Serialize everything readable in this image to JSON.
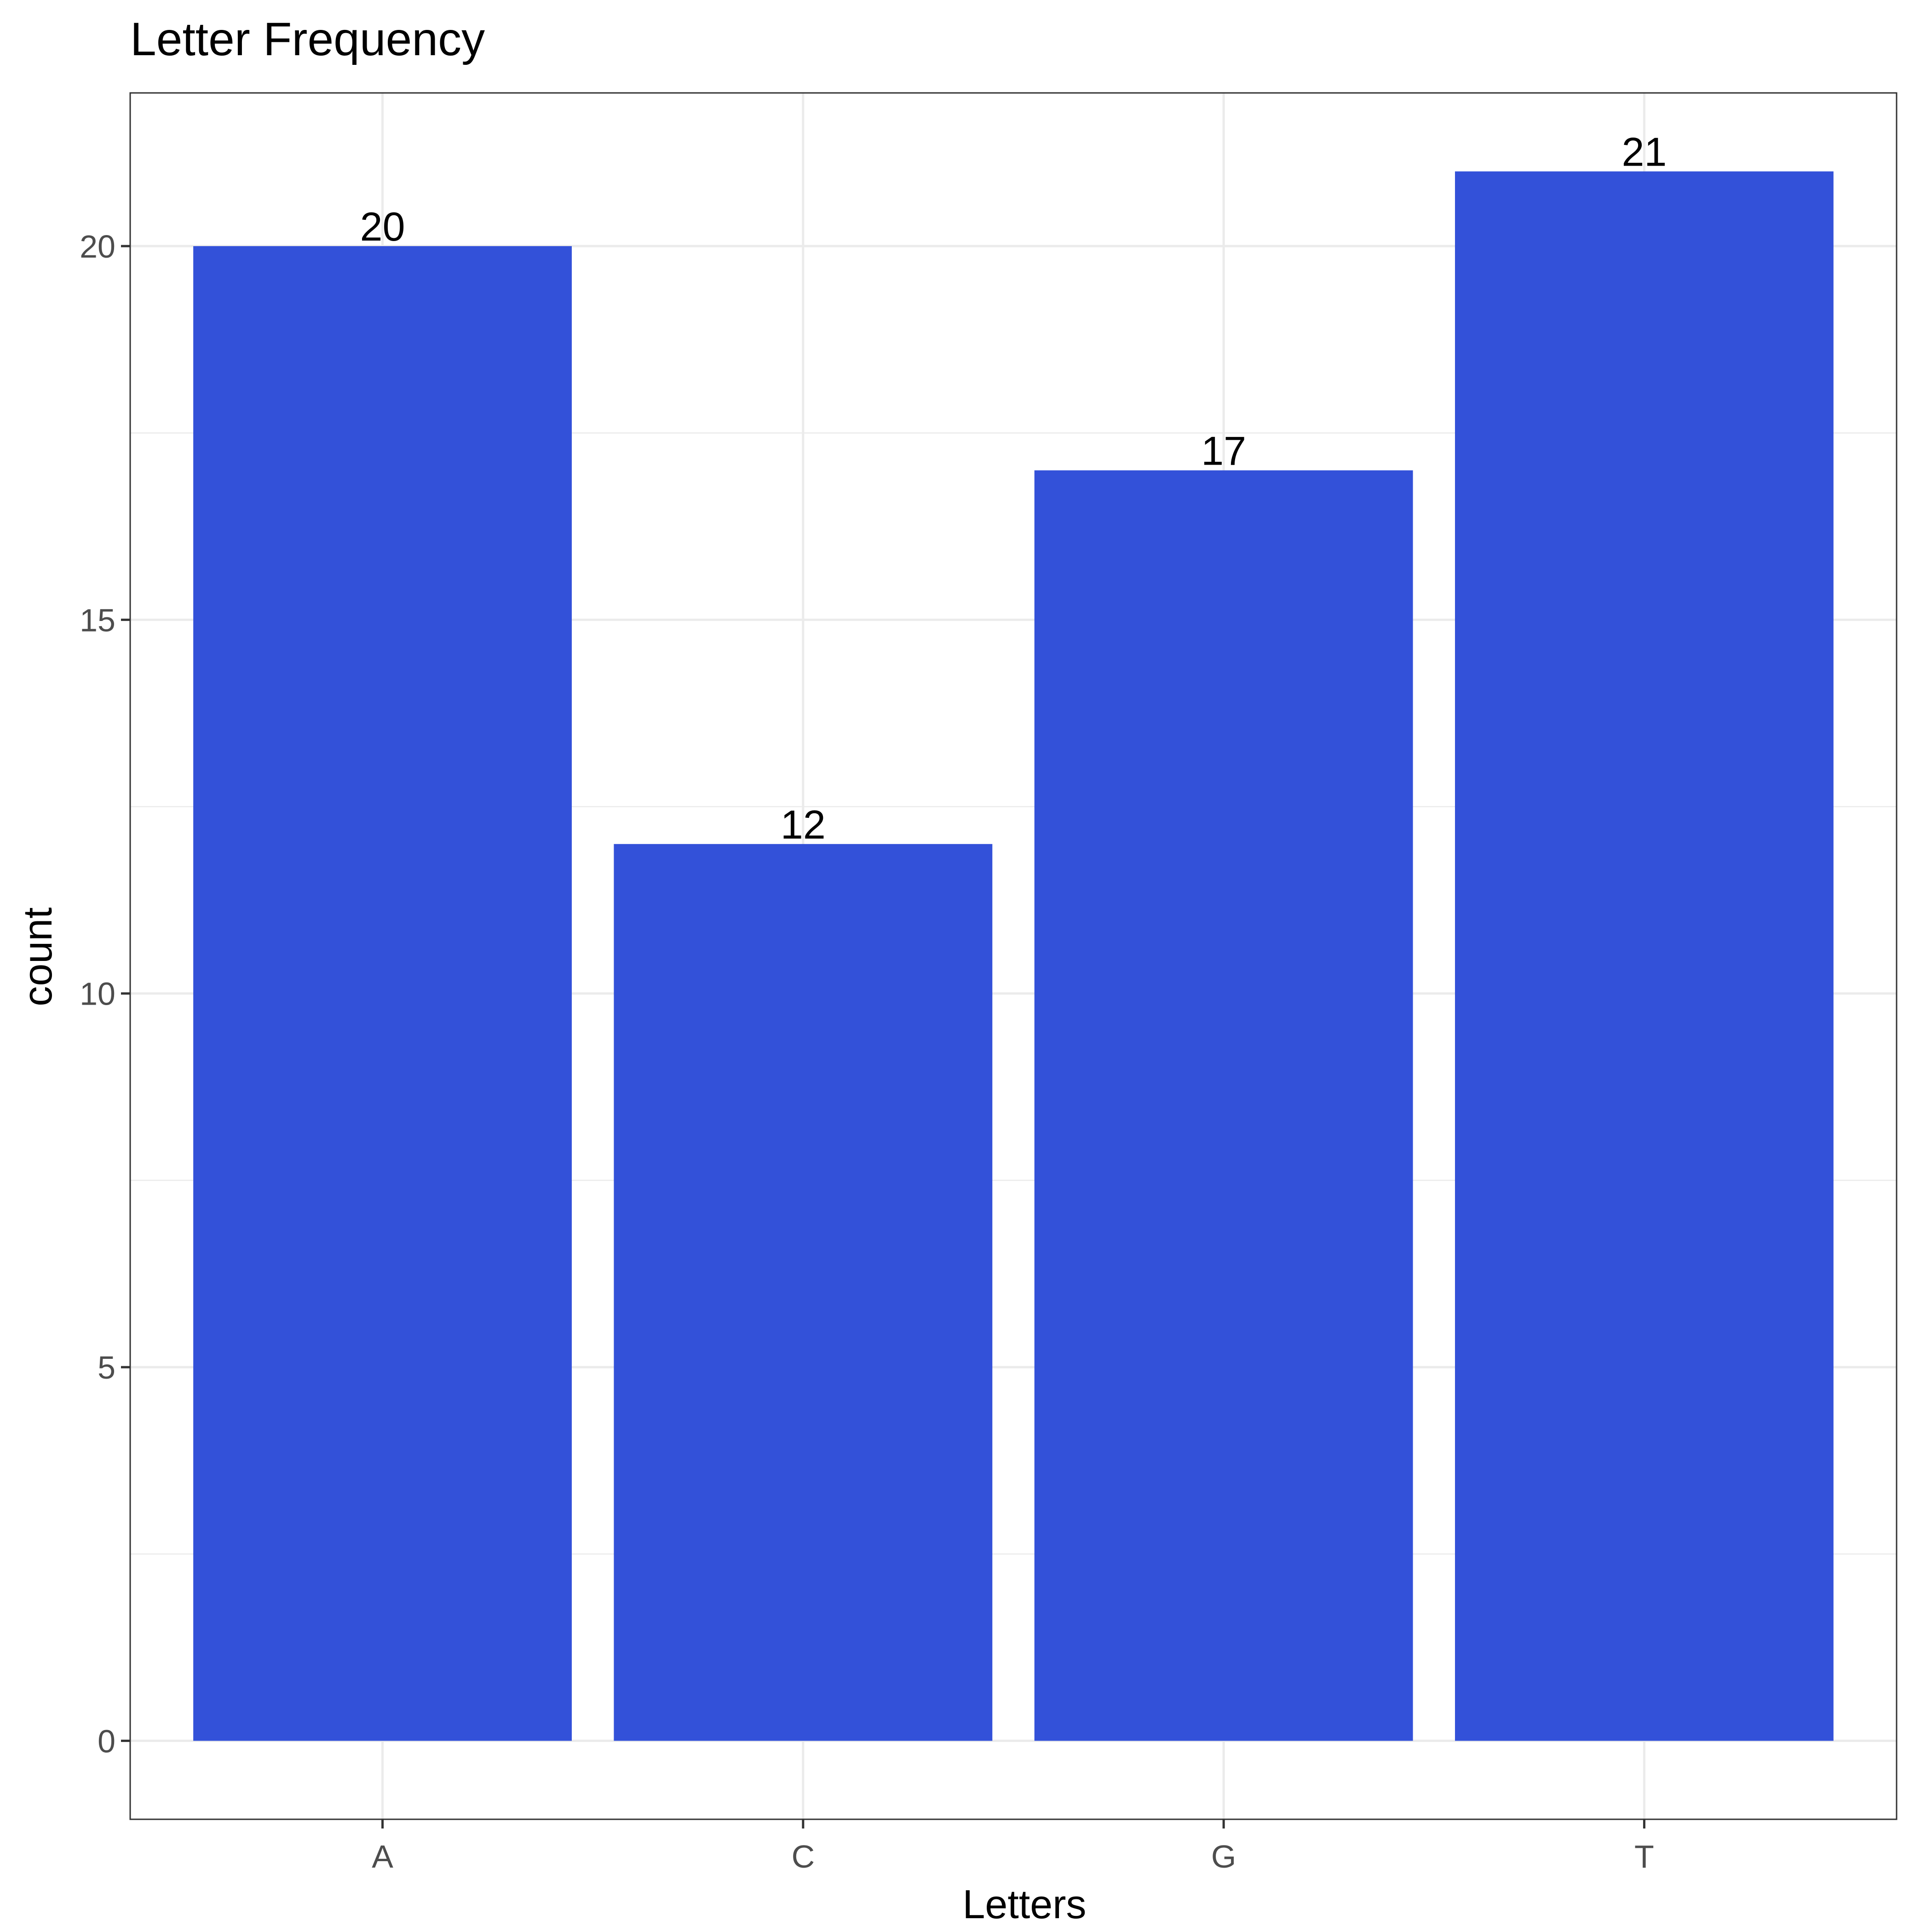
{
  "chart_data": {
    "type": "bar",
    "title": "Letter Frequency",
    "xlabel": "Letters",
    "ylabel": "count",
    "categories": [
      "A",
      "C",
      "G",
      "T"
    ],
    "values": [
      20,
      12,
      17,
      21
    ],
    "data_labels": [
      "20",
      "12",
      "17",
      "21"
    ],
    "ylim": [
      -1.05,
      22.05
    ],
    "yticks": [
      0,
      5,
      10,
      15,
      20
    ],
    "ytick_labels": [
      "0",
      "5",
      "10",
      "15",
      "20"
    ],
    "grid": true,
    "bar_color": "#3351D9",
    "grid_color": "#EBEBEB",
    "panel_border_color": "#333333"
  }
}
